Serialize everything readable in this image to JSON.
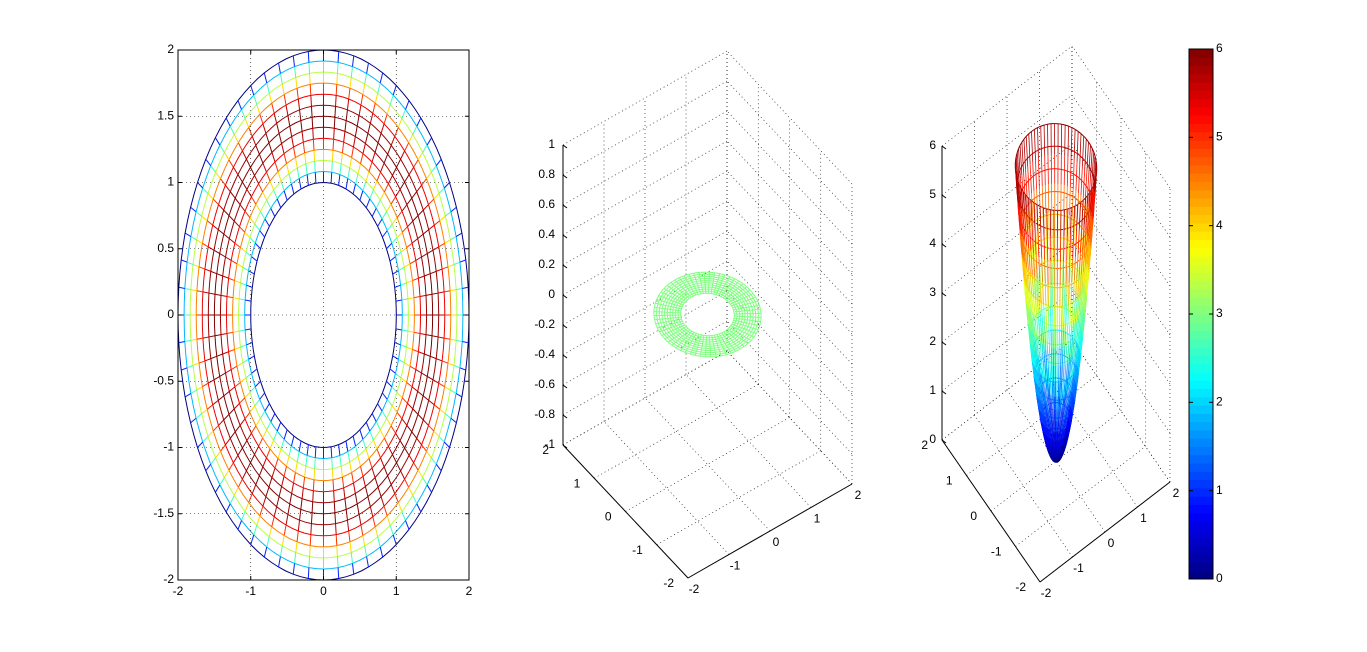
{
  "colormap": "jet",
  "chart_data": [
    {
      "type": "surface-mesh",
      "view": "2d-top",
      "surface": "annulus radius 1 to 2, color = height",
      "radii": [
        1.0,
        2.0
      ],
      "xlim": [
        -2,
        2
      ],
      "ylim": [
        -2,
        2
      ],
      "xticks": [
        "-2",
        "-1",
        "0",
        "1",
        "2"
      ],
      "yticks": [
        "-2",
        "-1.5",
        "-1",
        "-0.5",
        "0",
        "0.5",
        "1",
        "1.5",
        "2"
      ],
      "grid": true
    },
    {
      "type": "surface-mesh",
      "view": "3d",
      "surface": "flat annulus z = 0 (single color)",
      "radii": [
        1.0,
        2.0
      ],
      "xlim": [
        -2,
        2
      ],
      "ylim": [
        -2,
        2
      ],
      "zlim": [
        -1,
        1
      ],
      "xticks": [
        "-2",
        "-1",
        "0",
        "1",
        "2"
      ],
      "yticks": [
        "-2",
        "-1",
        "0",
        "1",
        "2"
      ],
      "zticks": [
        "-1",
        "-0.8",
        "-0.6",
        "-0.4",
        "-0.2",
        "0",
        "0.2",
        "0.4",
        "0.6",
        "0.8",
        "1"
      ],
      "mesh_color": "#7fff7f",
      "grid": true
    },
    {
      "type": "surface-mesh",
      "view": "3d",
      "surface": "paraboloid z = 6*(x^2+y^2) inside unit disk",
      "radius": 1.0,
      "xlim": [
        -2,
        2
      ],
      "ylim": [
        -2,
        2
      ],
      "zlim": [
        0,
        6
      ],
      "xticks": [
        "-2",
        "-1",
        "0",
        "1",
        "2"
      ],
      "yticks": [
        "-2",
        "-1",
        "0",
        "1",
        "2"
      ],
      "zticks": [
        "0",
        "1",
        "2",
        "3",
        "4",
        "5",
        "6"
      ],
      "grid": true
    }
  ],
  "colorbar": {
    "range": [
      0,
      6
    ],
    "ticks": [
      "0",
      "1",
      "2",
      "3",
      "4",
      "5",
      "6"
    ]
  }
}
